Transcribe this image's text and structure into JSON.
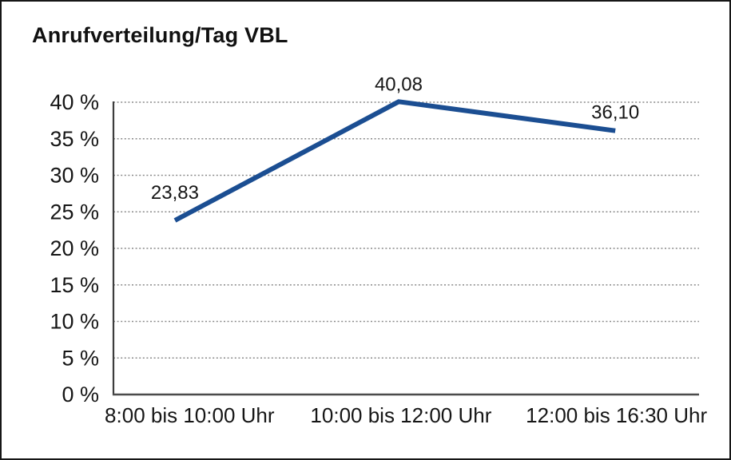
{
  "chart_data": {
    "type": "line",
    "title": "Anrufverteilung/Tag VBL",
    "categories": [
      "8:00 bis 10:00 Uhr",
      "10:00 bis 12:00 Uhr",
      "12:00 bis 16:30 Uhr"
    ],
    "values": [
      23.83,
      40.08,
      36.1
    ],
    "value_labels": [
      "23,83",
      "40,08",
      "36,10"
    ],
    "ytick_labels": [
      "0 %",
      "5 %",
      "10 %",
      "15 %",
      "20 %",
      "25 %",
      "30 %",
      "35 %",
      "40 %"
    ],
    "ylim": [
      0,
      40
    ],
    "xlabel": "",
    "ylabel": "",
    "legend": "none",
    "grid": "horizontal-dotted",
    "line_color": "#1b4e92",
    "text_color": "#161616",
    "gridline_color": "#8a8a8a",
    "axis_color": "#3d3d3d"
  }
}
